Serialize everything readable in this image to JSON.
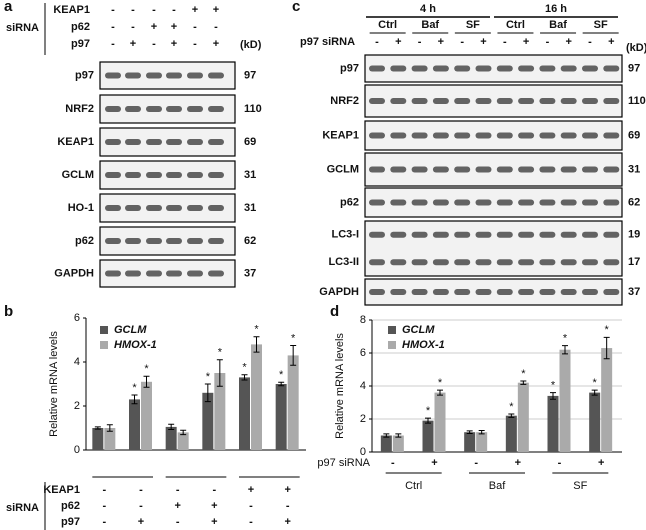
{
  "panel_a": {
    "label": "a",
    "siRNA": "siRNA",
    "kd_unit": "(kD)",
    "conditions": [
      {
        "name": "KEAP1",
        "signs": [
          "-",
          "-",
          "-",
          "-",
          "+",
          "+"
        ]
      },
      {
        "name": "p62",
        "signs": [
          "-",
          "-",
          "+",
          "+",
          "-",
          "-"
        ]
      },
      {
        "name": "p97",
        "signs": [
          "-",
          "+",
          "-",
          "+",
          "-",
          "+"
        ]
      }
    ],
    "blots": [
      {
        "rows": [
          {
            "name": "p97",
            "kd": 97
          }
        ]
      },
      {
        "rows": [
          {
            "name": "NRF2",
            "kd": 110
          }
        ]
      },
      {
        "rows": [
          {
            "name": "KEAP1",
            "kd": 69
          }
        ]
      },
      {
        "rows": [
          {
            "name": "GCLM",
            "kd": 31
          }
        ]
      },
      {
        "rows": [
          {
            "name": "HO-1",
            "kd": 31
          }
        ]
      },
      {
        "rows": [
          {
            "name": "p62",
            "kd": 62
          }
        ]
      },
      {
        "rows": [
          {
            "name": "GAPDH",
            "kd": 37
          }
        ]
      }
    ]
  },
  "panel_c": {
    "label": "c",
    "times": [
      "4 h",
      "16 h"
    ],
    "groups": [
      "Ctrl",
      "Baf",
      "SF",
      "Ctrl",
      "Baf",
      "SF"
    ],
    "condition": {
      "name": "p97 siRNA",
      "signs": [
        "-",
        "+",
        "-",
        "+",
        "-",
        "+",
        "-",
        "+",
        "-",
        "+",
        "-",
        "+"
      ]
    },
    "kd_unit": "(kD)",
    "blots": [
      {
        "rows": [
          {
            "name": "p97",
            "kd": 97
          }
        ]
      },
      {
        "rows": [
          {
            "name": "NRF2",
            "kd": 110
          }
        ]
      },
      {
        "rows": [
          {
            "name": "KEAP1",
            "kd": 69
          }
        ]
      },
      {
        "rows": [
          {
            "name": "GCLM",
            "kd": 31
          }
        ]
      },
      {
        "rows": [
          {
            "name": "p62",
            "kd": 62
          }
        ]
      },
      {
        "rows": [
          {
            "name": "LC3-I",
            "kd": 19
          },
          {
            "name": "LC3-II",
            "kd": 17
          }
        ]
      },
      {
        "rows": [
          {
            "name": "GAPDH",
            "kd": 37
          }
        ]
      }
    ]
  },
  "chart_data": [
    {
      "type": "bar",
      "panel": "b",
      "ylabel": "Relative mRNA levels",
      "ylim": [
        0,
        6
      ],
      "yticks": [
        0,
        2,
        4,
        6
      ],
      "grid": false,
      "legend": "top-left",
      "categories": [
        null,
        null,
        null,
        null,
        null,
        null
      ],
      "series": [
        {
          "name": "GCLM",
          "color": "#555555",
          "values": [
            1.0,
            2.3,
            1.05,
            2.6,
            3.3,
            3.0
          ],
          "errors": [
            0.05,
            0.2,
            0.12,
            0.4,
            0.12,
            0.08
          ],
          "marks": [
            null,
            "*",
            null,
            "*",
            "*",
            "*"
          ]
        },
        {
          "name": "HMOX-1",
          "color": "#aaaaaa",
          "values": [
            1.0,
            3.1,
            0.8,
            3.5,
            4.8,
            4.3
          ],
          "errors": [
            0.15,
            0.25,
            0.1,
            0.6,
            0.35,
            0.45
          ],
          "marks": [
            null,
            "*",
            null,
            "*",
            "*",
            "*"
          ]
        }
      ],
      "table": {
        "title": "siRNA",
        "rows": [
          {
            "name": "KEAP1",
            "signs": [
              "-",
              "-",
              "-",
              "-",
              "+",
              "+"
            ]
          },
          {
            "name": "p62",
            "signs": [
              "-",
              "-",
              "+",
              "+",
              "-",
              "-"
            ]
          },
          {
            "name": "p97",
            "signs": [
              "-",
              "+",
              "-",
              "+",
              "-",
              "+"
            ]
          }
        ]
      }
    },
    {
      "type": "bar",
      "panel": "d",
      "ylabel": "Relative mRNA levels",
      "ylim": [
        0,
        8
      ],
      "yticks": [
        0,
        2,
        4,
        6,
        8
      ],
      "grid": true,
      "legend": "top-left",
      "categories": [
        null,
        null,
        null,
        null,
        null,
        null
      ],
      "series": [
        {
          "name": "GCLM",
          "color": "#555555",
          "values": [
            1.0,
            1.9,
            1.2,
            2.2,
            3.4,
            3.6
          ],
          "errors": [
            0.1,
            0.15,
            0.08,
            0.1,
            0.2,
            0.15
          ],
          "marks": [
            null,
            "*",
            null,
            "*",
            "*",
            "*"
          ]
        },
        {
          "name": "HMOX-1",
          "color": "#aaaaaa",
          "values": [
            1.0,
            3.6,
            1.2,
            4.2,
            6.2,
            6.3
          ],
          "errors": [
            0.1,
            0.15,
            0.1,
            0.1,
            0.25,
            0.65
          ],
          "marks": [
            null,
            "*",
            null,
            "*",
            "*",
            "*"
          ]
        }
      ],
      "table": {
        "rows": [
          {
            "name": "p97 siRNA",
            "signs": [
              "-",
              "+",
              "-",
              "+",
              "-",
              "+"
            ]
          }
        ],
        "groups": [
          "Ctrl",
          "Baf",
          "SF"
        ]
      }
    }
  ]
}
